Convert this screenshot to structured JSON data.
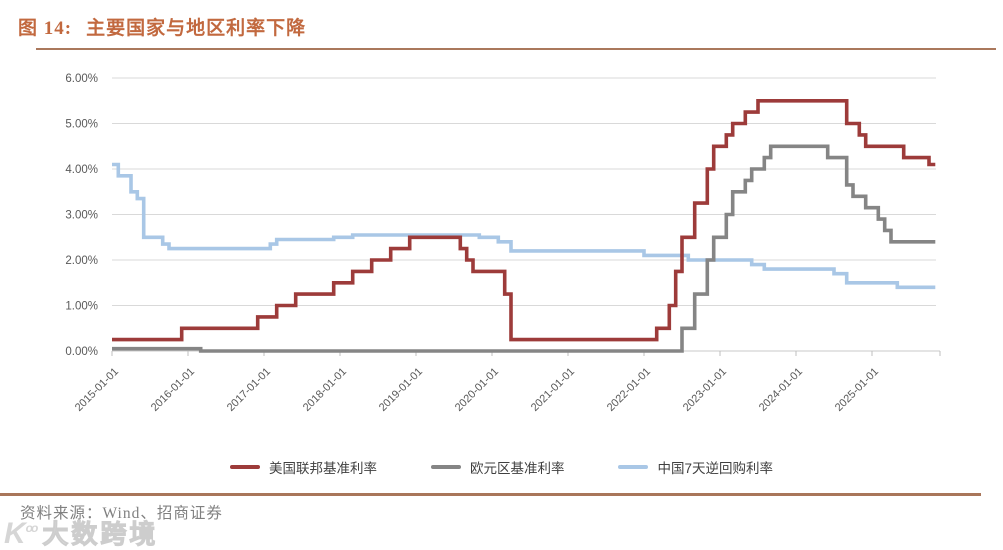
{
  "figure": {
    "label": "图 14:",
    "title": "主要国家与地区利率下降"
  },
  "source": {
    "prefix": "资料来源：",
    "text": "Wind、招商证券"
  },
  "watermark": {
    "logo": "K°°",
    "text": "大数跨境"
  },
  "colors": {
    "title_text": "#c2693f",
    "title_rule": "#aa785c",
    "footer_rule": "#a9765a",
    "gridline": "#d9d9d9",
    "axis_line": "#c8c8c8",
    "tick": "#bfbfbf",
    "axis_text": "#595959",
    "legend_text": "#404040",
    "source_text": "#808080",
    "us_series": "#9d3b3a",
    "eu_series": "#858585",
    "cn_series": "#a9c7e6"
  },
  "chart_data": {
    "type": "line",
    "step": true,
    "title": "主要国家与地区利率下降",
    "xlabel": "",
    "ylabel": "",
    "x_start": "2015-01",
    "x_interval": "month",
    "x_tick_labels": [
      "2015-01-01",
      "2016-01-01",
      "2017-01-01",
      "2018-01-01",
      "2019-01-01",
      "2020-01-01",
      "2021-01-01",
      "2022-01-01",
      "2023-01-01",
      "2024-01-01",
      "2025-01-01"
    ],
    "y_tick_labels": [
      "0.00%",
      "1.00%",
      "2.00%",
      "3.00%",
      "4.00%",
      "5.00%",
      "6.00%"
    ],
    "ylim": [
      0,
      6
    ],
    "grid": true,
    "legend_position": "bottom",
    "series": [
      {
        "name": "美国联邦基准利率",
        "color": "#9d3b3a",
        "values": [
          0.25,
          0.25,
          0.25,
          0.25,
          0.25,
          0.25,
          0.25,
          0.25,
          0.25,
          0.25,
          0.25,
          0.5,
          0.5,
          0.5,
          0.5,
          0.5,
          0.5,
          0.5,
          0.5,
          0.5,
          0.5,
          0.5,
          0.5,
          0.75,
          0.75,
          0.75,
          1.0,
          1.0,
          1.0,
          1.25,
          1.25,
          1.25,
          1.25,
          1.25,
          1.25,
          1.5,
          1.5,
          1.5,
          1.75,
          1.75,
          1.75,
          2.0,
          2.0,
          2.0,
          2.25,
          2.25,
          2.25,
          2.5,
          2.5,
          2.5,
          2.5,
          2.5,
          2.5,
          2.5,
          2.5,
          2.25,
          2.0,
          1.75,
          1.75,
          1.75,
          1.75,
          1.75,
          1.25,
          0.25,
          0.25,
          0.25,
          0.25,
          0.25,
          0.25,
          0.25,
          0.25,
          0.25,
          0.25,
          0.25,
          0.25,
          0.25,
          0.25,
          0.25,
          0.25,
          0.25,
          0.25,
          0.25,
          0.25,
          0.25,
          0.25,
          0.25,
          0.5,
          0.5,
          1.0,
          1.75,
          2.5,
          2.5,
          3.25,
          3.25,
          4.0,
          4.5,
          4.5,
          4.75,
          5.0,
          5.0,
          5.25,
          5.25,
          5.5,
          5.5,
          5.5,
          5.5,
          5.5,
          5.5,
          5.5,
          5.5,
          5.5,
          5.5,
          5.5,
          5.5,
          5.5,
          5.5,
          5.0,
          5.0,
          4.75,
          4.5,
          4.5,
          4.5,
          4.5,
          4.5,
          4.5,
          4.25,
          4.25,
          4.25,
          4.25,
          4.1,
          4.1
        ]
      },
      {
        "name": "欧元区基准利率",
        "color": "#858585",
        "values": [
          0.05,
          0.05,
          0.05,
          0.05,
          0.05,
          0.05,
          0.05,
          0.05,
          0.05,
          0.05,
          0.05,
          0.05,
          0.05,
          0.05,
          0,
          0,
          0,
          0,
          0,
          0,
          0,
          0,
          0,
          0,
          0,
          0,
          0,
          0,
          0,
          0,
          0,
          0,
          0,
          0,
          0,
          0,
          0,
          0,
          0,
          0,
          0,
          0,
          0,
          0,
          0,
          0,
          0,
          0,
          0,
          0,
          0,
          0,
          0,
          0,
          0,
          0,
          0,
          0,
          0,
          0,
          0,
          0,
          0,
          0,
          0,
          0,
          0,
          0,
          0,
          0,
          0,
          0,
          0,
          0,
          0,
          0,
          0,
          0,
          0,
          0,
          0,
          0,
          0,
          0,
          0,
          0,
          0,
          0,
          0,
          0,
          0.5,
          0.5,
          1.25,
          1.25,
          2.0,
          2.5,
          2.5,
          3.0,
          3.5,
          3.5,
          3.75,
          4.0,
          4.0,
          4.25,
          4.5,
          4.5,
          4.5,
          4.5,
          4.5,
          4.5,
          4.5,
          4.5,
          4.5,
          4.25,
          4.25,
          4.25,
          3.65,
          3.4,
          3.4,
          3.15,
          3.15,
          2.9,
          2.65,
          2.4,
          2.4,
          2.4,
          2.4,
          2.4,
          2.4,
          2.4,
          2.4
        ]
      },
      {
        "name": "中国7天逆回购利率",
        "color": "#a9c7e6",
        "values": [
          4.1,
          3.85,
          3.85,
          3.5,
          3.35,
          2.5,
          2.5,
          2.5,
          2.35,
          2.25,
          2.25,
          2.25,
          2.25,
          2.25,
          2.25,
          2.25,
          2.25,
          2.25,
          2.25,
          2.25,
          2.25,
          2.25,
          2.25,
          2.25,
          2.25,
          2.35,
          2.45,
          2.45,
          2.45,
          2.45,
          2.45,
          2.45,
          2.45,
          2.45,
          2.45,
          2.5,
          2.5,
          2.5,
          2.55,
          2.55,
          2.55,
          2.55,
          2.55,
          2.55,
          2.55,
          2.55,
          2.55,
          2.55,
          2.55,
          2.55,
          2.55,
          2.55,
          2.55,
          2.55,
          2.55,
          2.55,
          2.55,
          2.55,
          2.5,
          2.5,
          2.5,
          2.4,
          2.4,
          2.2,
          2.2,
          2.2,
          2.2,
          2.2,
          2.2,
          2.2,
          2.2,
          2.2,
          2.2,
          2.2,
          2.2,
          2.2,
          2.2,
          2.2,
          2.2,
          2.2,
          2.2,
          2.2,
          2.2,
          2.2,
          2.1,
          2.1,
          2.1,
          2.1,
          2.1,
          2.1,
          2.1,
          2.0,
          2.0,
          2.0,
          2.0,
          2.0,
          2.0,
          2.0,
          2.0,
          2.0,
          2.0,
          1.9,
          1.9,
          1.8,
          1.8,
          1.8,
          1.8,
          1.8,
          1.8,
          1.8,
          1.8,
          1.8,
          1.8,
          1.8,
          1.7,
          1.7,
          1.5,
          1.5,
          1.5,
          1.5,
          1.5,
          1.5,
          1.5,
          1.5,
          1.4,
          1.4,
          1.4,
          1.4,
          1.4,
          1.4,
          1.4
        ]
      }
    ]
  }
}
